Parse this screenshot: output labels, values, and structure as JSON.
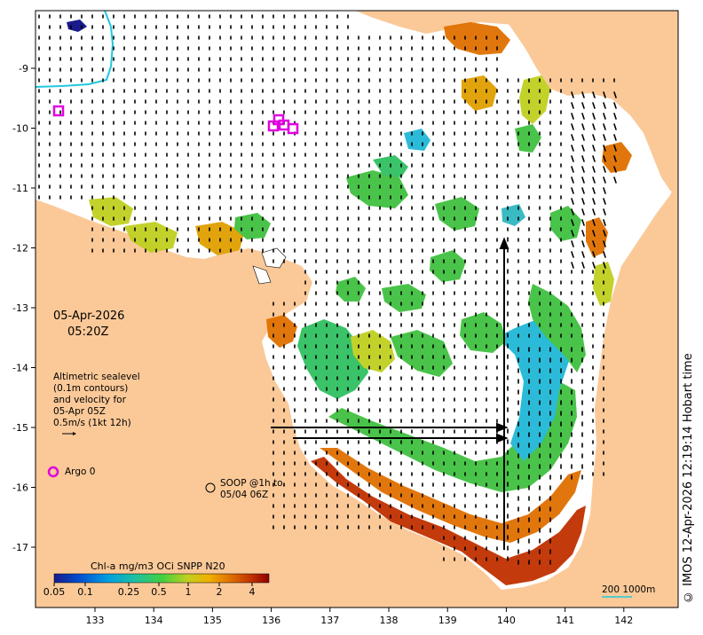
{
  "map": {
    "date": "05-Apr-2026",
    "time": "05:20Z",
    "altimetry_lines": [
      "Altimetric sealevel",
      "(0.1m contours)",
      "and velocity for",
      "05-Apr 05Z",
      "0.5m/s (1kt 12h)"
    ],
    "argo_label": "Argo 0",
    "soop_lines": [
      "SOOP @1h to",
      "05/04 06Z"
    ],
    "scale_label": "200  1000m",
    "copyright": "© IMOS 12-Apr-2026 12:19:14 Hobart time",
    "colorbar": {
      "title": "Chl-a mg/m3 OCi SNPP N20",
      "ticks": [
        "0.05",
        "0.1",
        "0.25",
        "0.5",
        "1",
        "2",
        "4"
      ],
      "colors": [
        "#1a1a8c",
        "#0050d0",
        "#00a0e0",
        "#20c0a0",
        "#40d040",
        "#c0d020",
        "#f0b000",
        "#e07000",
        "#c03000",
        "#900000"
      ]
    },
    "x_ticks": [
      "133",
      "134",
      "135",
      "136",
      "137",
      "138",
      "139",
      "140",
      "141",
      "142"
    ],
    "y_ticks": [
      "-9",
      "-10",
      "-11",
      "-12",
      "-13",
      "-14",
      "-15",
      "-16",
      "-17"
    ],
    "colors": {
      "land": "#fbc998",
      "ocean": "#ffffff",
      "argo": "#e000e0",
      "cyan_line": "#20c8e0"
    }
  }
}
